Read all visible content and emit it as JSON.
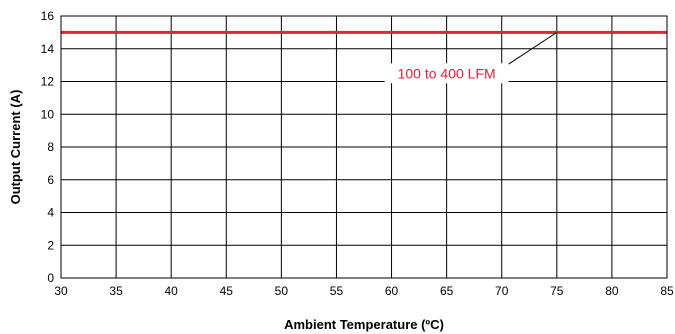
{
  "chart_data": {
    "type": "line",
    "xlabel": "Ambient Temperature (ºC)",
    "ylabel": "Output Current (A)",
    "xlim": [
      30,
      85
    ],
    "ylim": [
      0,
      16
    ],
    "x_ticks": [
      30,
      35,
      40,
      45,
      50,
      55,
      60,
      65,
      70,
      75,
      80,
      85
    ],
    "y_ticks": [
      0,
      2,
      4,
      6,
      8,
      10,
      12,
      14,
      16
    ],
    "grid": true,
    "series": [
      {
        "name": "100 to 400 LFM",
        "color": "#e8203a",
        "x": [
          30,
          85
        ],
        "y": [
          15,
          15
        ]
      }
    ],
    "annotations": [
      {
        "text": "100 to 400 LFM",
        "x": 65,
        "y": 12.5,
        "points_to": {
          "x": 75,
          "y": 15
        }
      }
    ]
  }
}
